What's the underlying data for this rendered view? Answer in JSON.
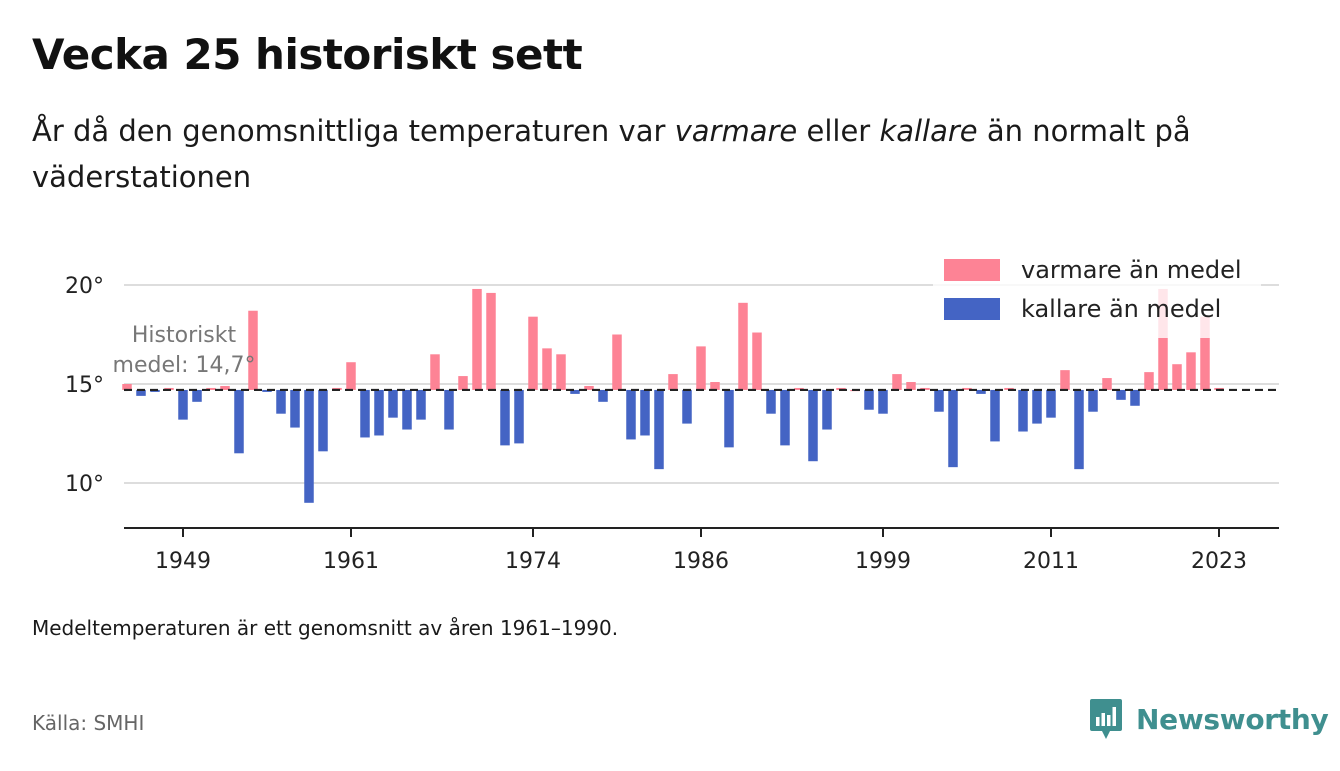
{
  "title": "Vecka 25 historiskt sett",
  "subtitle": {
    "part1": "År då den genomsnittliga temperaturen var ",
    "warmer": "varmare",
    "part2": " eller ",
    "colder": "kallare",
    "part3": " än normalt på väderstationen"
  },
  "note": "Medeltemperaturen är ett genomsnitt av åren 1961–1990.",
  "source": "Källa: SMHI",
  "brand": "Newsworthy",
  "colors": {
    "warm": "#fd8395",
    "cold": "#4464c4",
    "brand": "#3f8f8f"
  },
  "chart_data": {
    "type": "bar",
    "baseline": 14.7,
    "baseline_label_line1": "Historiskt",
    "baseline_label_line2": "medel: 14,7°",
    "x_ticks": [
      "1949",
      "1961",
      "1974",
      "1986",
      "1999",
      "2011",
      "2023"
    ],
    "y_ticks": [
      "10°",
      "15°",
      "20°"
    ],
    "ylim": [
      7.8,
      22.5
    ],
    "legend": [
      {
        "label": "varmare än medel",
        "color": "warm"
      },
      {
        "label": "kallare än medel",
        "color": "cold"
      }
    ],
    "legend_position": "top-right",
    "grid": true,
    "series": [
      {
        "x": 1945,
        "value": 15.0
      },
      {
        "x": 1946,
        "value": 14.4
      },
      {
        "x": 1947,
        "value": 14.6
      },
      {
        "x": 1948,
        "value": 14.8
      },
      {
        "x": 1949,
        "value": 13.2
      },
      {
        "x": 1950,
        "value": 14.1
      },
      {
        "x": 1951,
        "value": 14.8
      },
      {
        "x": 1952,
        "value": 14.9
      },
      {
        "x": 1953,
        "value": 11.5
      },
      {
        "x": 1954,
        "value": 18.7
      },
      {
        "x": 1955,
        "value": 14.6
      },
      {
        "x": 1956,
        "value": 13.5
      },
      {
        "x": 1957,
        "value": 12.8
      },
      {
        "x": 1958,
        "value": 9.0
      },
      {
        "x": 1959,
        "value": 11.6
      },
      {
        "x": 1960,
        "value": 14.8
      },
      {
        "x": 1961,
        "value": 16.1
      },
      {
        "x": 1962,
        "value": 12.3
      },
      {
        "x": 1963,
        "value": 12.4
      },
      {
        "x": 1964,
        "value": 13.3
      },
      {
        "x": 1965,
        "value": 12.7
      },
      {
        "x": 1966,
        "value": 13.2
      },
      {
        "x": 1967,
        "value": 16.5
      },
      {
        "x": 1968,
        "value": 12.7
      },
      {
        "x": 1969,
        "value": 15.4
      },
      {
        "x": 1970,
        "value": 19.8
      },
      {
        "x": 1971,
        "value": 19.6
      },
      {
        "x": 1972,
        "value": 11.9
      },
      {
        "x": 1973,
        "value": 12.0
      },
      {
        "x": 1974,
        "value": 18.4
      },
      {
        "x": 1975,
        "value": 16.8
      },
      {
        "x": 1976,
        "value": 16.5
      },
      {
        "x": 1977,
        "value": 14.5
      },
      {
        "x": 1978,
        "value": 14.9
      },
      {
        "x": 1979,
        "value": 14.1
      },
      {
        "x": 1980,
        "value": 17.5
      },
      {
        "x": 1981,
        "value": 12.2
      },
      {
        "x": 1982,
        "value": 12.4
      },
      {
        "x": 1983,
        "value": 10.7
      },
      {
        "x": 1984,
        "value": 15.5
      },
      {
        "x": 1985,
        "value": 13.0
      },
      {
        "x": 1986,
        "value": 16.9
      },
      {
        "x": 1987,
        "value": 15.1
      },
      {
        "x": 1988,
        "value": 11.8
      },
      {
        "x": 1989,
        "value": 19.1
      },
      {
        "x": 1990,
        "value": 17.6
      },
      {
        "x": 1991,
        "value": 13.5
      },
      {
        "x": 1992,
        "value": 11.9
      },
      {
        "x": 1993,
        "value": 14.8
      },
      {
        "x": 1994,
        "value": 11.1
      },
      {
        "x": 1995,
        "value": 12.7
      },
      {
        "x": 1996,
        "value": 14.8
      },
      {
        "x": 1997,
        "value": 14.7
      },
      {
        "x": 1998,
        "value": 13.7
      },
      {
        "x": 1999,
        "value": 13.5
      },
      {
        "x": 2000,
        "value": 15.5
      },
      {
        "x": 2001,
        "value": 15.1
      },
      {
        "x": 2002,
        "value": 14.8
      },
      {
        "x": 2003,
        "value": 13.6
      },
      {
        "x": 2004,
        "value": 10.8
      },
      {
        "x": 2005,
        "value": 14.8
      },
      {
        "x": 2006,
        "value": 14.5
      },
      {
        "x": 2007,
        "value": 12.1
      },
      {
        "x": 2008,
        "value": 14.8
      },
      {
        "x": 2009,
        "value": 12.6
      },
      {
        "x": 2010,
        "value": 13.0
      },
      {
        "x": 2011,
        "value": 13.3
      },
      {
        "x": 2012,
        "value": 15.7
      },
      {
        "x": 2013,
        "value": 10.7
      },
      {
        "x": 2014,
        "value": 13.6
      },
      {
        "x": 2015,
        "value": 15.3
      },
      {
        "x": 2016,
        "value": 14.2
      },
      {
        "x": 2017,
        "value": 13.9
      },
      {
        "x": 2018,
        "value": 15.6
      },
      {
        "x": 2019,
        "value": 19.8
      },
      {
        "x": 2020,
        "value": 16.0
      },
      {
        "x": 2021,
        "value": 16.6
      },
      {
        "x": 2022,
        "value": 18.4
      },
      {
        "x": 2023,
        "value": 14.8
      }
    ]
  }
}
